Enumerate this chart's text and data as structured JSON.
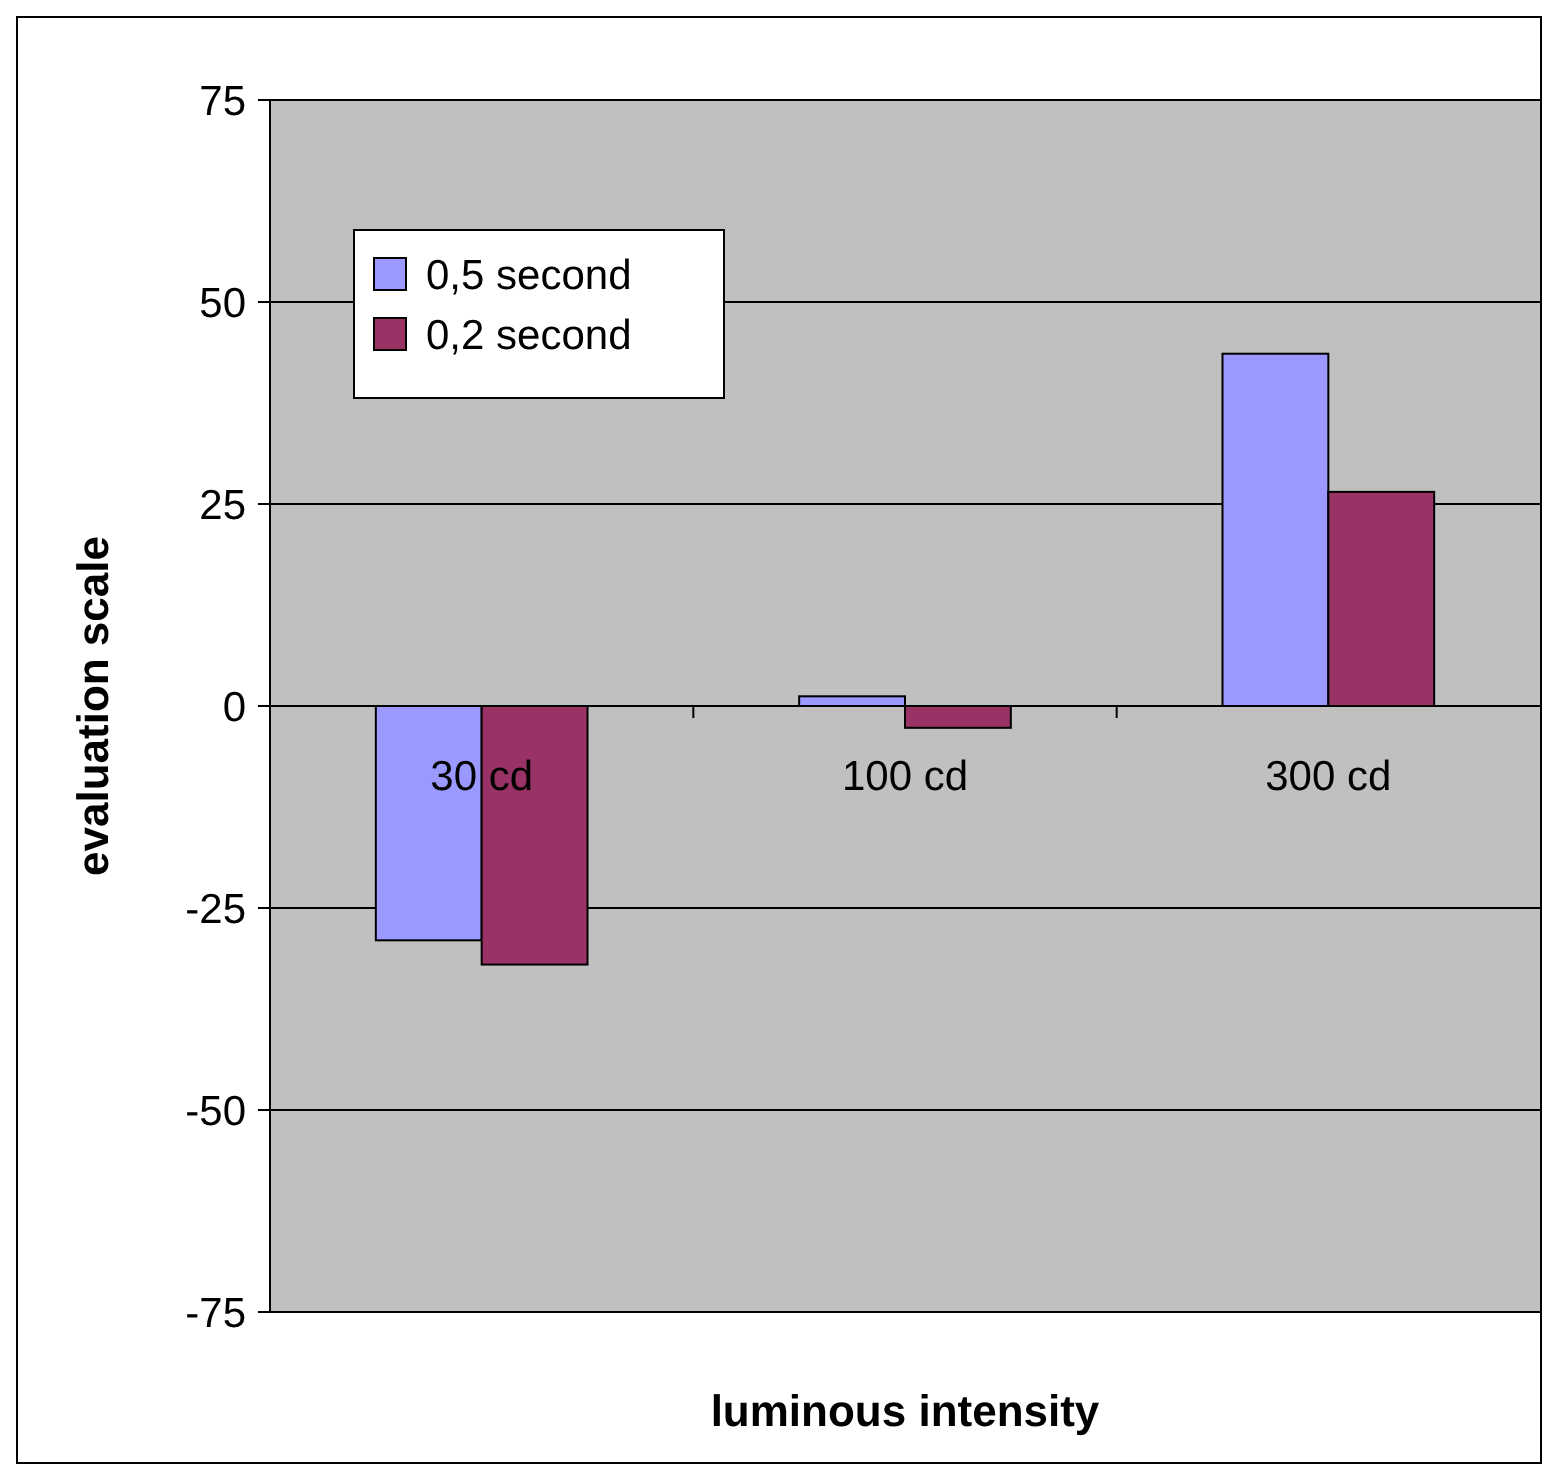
{
  "chart_data": {
    "type": "bar",
    "xlabel": "luminous intensity",
    "ylabel": "evaluation scale",
    "categories": [
      "30 cd",
      "100 cd",
      "300 cd"
    ],
    "series": [
      {
        "name": "0,5 second",
        "color": "#9999ff",
        "values": [
          -29,
          1.2,
          43.6
        ]
      },
      {
        "name": "0,2 second",
        "color": "#993366",
        "values": [
          -32,
          -2.7,
          26.5
        ]
      }
    ],
    "ylim": [
      -75,
      75
    ],
    "yticks": [
      -75,
      -50,
      -25,
      0,
      25,
      50,
      75
    ],
    "grid": "y",
    "legend": "top left"
  }
}
